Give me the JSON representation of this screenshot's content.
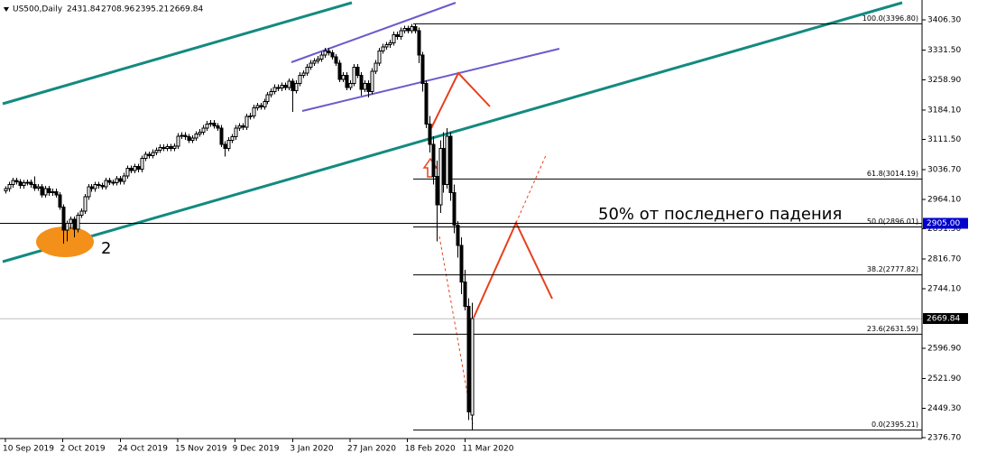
{
  "chart_data": {
    "type": "candlestick",
    "symbol": "US500,Daily",
    "up_color": "#ffffff",
    "down_color": "#000000",
    "candles": [
      [
        2985,
        2996,
        2978,
        2990
      ],
      [
        2990,
        3007,
        2983,
        3000
      ],
      [
        3000,
        3017,
        2993,
        3010
      ],
      [
        3010,
        3017,
        3000,
        3007
      ],
      [
        3007,
        3014,
        2991,
        2998
      ],
      [
        2998,
        3012,
        2991,
        3005
      ],
      [
        3005,
        3013,
        2998,
        3006
      ],
      [
        3006,
        3013,
        2993,
        3000
      ],
      [
        3000,
        3020,
        2985,
        2992
      ],
      [
        2992,
        3002,
        2985,
        2995
      ],
      [
        2995,
        3002,
        2968,
        2975
      ],
      [
        2975,
        2997,
        2968,
        2990
      ],
      [
        2990,
        2997,
        2973,
        2980
      ],
      [
        2980,
        2990,
        2973,
        2983
      ],
      [
        2983,
        2990,
        2968,
        2975
      ],
      [
        2975,
        2982,
        2938,
        2945
      ],
      [
        2945,
        2952,
        2855,
        2888
      ],
      [
        2888,
        2912,
        2860,
        2905
      ],
      [
        2905,
        2922,
        2890,
        2915
      ],
      [
        2915,
        2922,
        2870,
        2890
      ],
      [
        2890,
        2932,
        2883,
        2925
      ],
      [
        2925,
        2942,
        2918,
        2935
      ],
      [
        2935,
        2977,
        2928,
        2970
      ],
      [
        2970,
        3002,
        2963,
        2995
      ],
      [
        2995,
        3002,
        2983,
        2990
      ],
      [
        2990,
        3007,
        2983,
        3000
      ],
      [
        3000,
        3007,
        2991,
        2998
      ],
      [
        2998,
        3005,
        2988,
        2995
      ],
      [
        2995,
        3017,
        2988,
        3010
      ],
      [
        3010,
        3017,
        2999,
        3006
      ],
      [
        3006,
        3013,
        2998,
        3005
      ],
      [
        3005,
        3022,
        2998,
        3015
      ],
      [
        3015,
        3022,
        3001,
        3008
      ],
      [
        3008,
        3029,
        3001,
        3022
      ],
      [
        3022,
        3047,
        3015,
        3040
      ],
      [
        3040,
        3047,
        3028,
        3035
      ],
      [
        3035,
        3052,
        3028,
        3045
      ],
      [
        3045,
        3052,
        3031,
        3038
      ],
      [
        3038,
        3072,
        3031,
        3065
      ],
      [
        3065,
        3082,
        3058,
        3075
      ],
      [
        3075,
        3082,
        3065,
        3072
      ],
      [
        3072,
        3087,
        3065,
        3080
      ],
      [
        3080,
        3092,
        3073,
        3085
      ],
      [
        3085,
        3099,
        3078,
        3092
      ],
      [
        3092,
        3099,
        3083,
        3090
      ],
      [
        3090,
        3101,
        3083,
        3094
      ],
      [
        3094,
        3101,
        3083,
        3090
      ],
      [
        3090,
        3102,
        3083,
        3095
      ],
      [
        3095,
        3127,
        3088,
        3120
      ],
      [
        3120,
        3129,
        3113,
        3122
      ],
      [
        3122,
        3129,
        3111,
        3118
      ],
      [
        3118,
        3125,
        3103,
        3110
      ],
      [
        3110,
        3122,
        3103,
        3115
      ],
      [
        3115,
        3132,
        3108,
        3125
      ],
      [
        3125,
        3137,
        3118,
        3130
      ],
      [
        3130,
        3147,
        3123,
        3140
      ],
      [
        3140,
        3157,
        3133,
        3150
      ],
      [
        3150,
        3159,
        3143,
        3152
      ],
      [
        3152,
        3159,
        3138,
        3145
      ],
      [
        3145,
        3152,
        3133,
        3140
      ],
      [
        3140,
        3147,
        3093,
        3100
      ],
      [
        3100,
        3107,
        3070,
        3090
      ],
      [
        3090,
        3117,
        3083,
        3110
      ],
      [
        3110,
        3125,
        3103,
        3118
      ],
      [
        3118,
        3147,
        3111,
        3140
      ],
      [
        3140,
        3152,
        3133,
        3145
      ],
      [
        3145,
        3152,
        3135,
        3142
      ],
      [
        3142,
        3175,
        3135,
        3168
      ],
      [
        3168,
        3177,
        3161,
        3170
      ],
      [
        3170,
        3197,
        3163,
        3190
      ],
      [
        3190,
        3202,
        3183,
        3195
      ],
      [
        3195,
        3202,
        3185,
        3192
      ],
      [
        3192,
        3212,
        3185,
        3205
      ],
      [
        3205,
        3229,
        3198,
        3222
      ],
      [
        3222,
        3237,
        3215,
        3230
      ],
      [
        3230,
        3247,
        3223,
        3240
      ],
      [
        3240,
        3247,
        3231,
        3238
      ],
      [
        3238,
        3252,
        3231,
        3245
      ],
      [
        3245,
        3252,
        3233,
        3240
      ],
      [
        3240,
        3262,
        3233,
        3255
      ],
      [
        3255,
        3262,
        3180,
        3232
      ],
      [
        3232,
        3257,
        3225,
        3250
      ],
      [
        3250,
        3277,
        3243,
        3270
      ],
      [
        3270,
        3282,
        3263,
        3275
      ],
      [
        3275,
        3297,
        3268,
        3290
      ],
      [
        3290,
        3307,
        3283,
        3300
      ],
      [
        3300,
        3312,
        3293,
        3305
      ],
      [
        3305,
        3317,
        3298,
        3310
      ],
      [
        3310,
        3327,
        3303,
        3320
      ],
      [
        3320,
        3337,
        3313,
        3330
      ],
      [
        3330,
        3337,
        3318,
        3325
      ],
      [
        3325,
        3332,
        3308,
        3315
      ],
      [
        3315,
        3322,
        3293,
        3300
      ],
      [
        3300,
        3307,
        3253,
        3260
      ],
      [
        3260,
        3277,
        3253,
        3270
      ],
      [
        3270,
        3277,
        3233,
        3240
      ],
      [
        3240,
        3257,
        3233,
        3250
      ],
      [
        3250,
        3297,
        3243,
        3290
      ],
      [
        3290,
        3297,
        3263,
        3270
      ],
      [
        3270,
        3277,
        3220,
        3235
      ],
      [
        3235,
        3257,
        3228,
        3250
      ],
      [
        3250,
        3257,
        3215,
        3230
      ],
      [
        3230,
        3287,
        3223,
        3280
      ],
      [
        3280,
        3307,
        3273,
        3300
      ],
      [
        3300,
        3337,
        3293,
        3330
      ],
      [
        3330,
        3347,
        3323,
        3340
      ],
      [
        3340,
        3352,
        3333,
        3345
      ],
      [
        3345,
        3357,
        3338,
        3350
      ],
      [
        3350,
        3377,
        3343,
        3370
      ],
      [
        3370,
        3377,
        3358,
        3365
      ],
      [
        3365,
        3387,
        3358,
        3380
      ],
      [
        3380,
        3392,
        3373,
        3385
      ],
      [
        3385,
        3392,
        3373,
        3380
      ],
      [
        3380,
        3396.8,
        3373,
        3390
      ],
      [
        3390,
        3395,
        3373,
        3380
      ],
      [
        3380,
        3387,
        3300,
        3320
      ],
      [
        3320,
        3327,
        3230,
        3250
      ],
      [
        3250,
        3257,
        3140,
        3150
      ],
      [
        3150,
        3170,
        3080,
        3100
      ],
      [
        3100,
        3120,
        3000,
        3020
      ],
      [
        3020,
        3060,
        2860,
        2950
      ],
      [
        2950,
        3110,
        2930,
        3090
      ],
      [
        3090,
        3130,
        2980,
        3000
      ],
      [
        3000,
        3140,
        2990,
        3120
      ],
      [
        3120,
        3130,
        2960,
        2980
      ],
      [
        2980,
        3000,
        2880,
        2900
      ],
      [
        2900,
        2910,
        2820,
        2850
      ],
      [
        2850,
        2870,
        2730,
        2760
      ],
      [
        2760,
        2790,
        2690,
        2700
      ],
      [
        2700,
        2720,
        2420,
        2440
      ],
      [
        2431.84,
        2708.96,
        2395.21,
        2669.84
      ]
    ],
    "xlim": [
      -1.5,
      255.3
    ],
    "xticks": [
      {
        "value": 0,
        "label": "10 Sep 2019"
      },
      {
        "value": 16,
        "label": "2 Oct 2019"
      },
      {
        "value": 32,
        "label": "24 Oct 2019"
      },
      {
        "value": 48,
        "label": "15 Nov 2019"
      },
      {
        "value": 64,
        "label": "9 Dec 2019"
      },
      {
        "value": 80,
        "label": "3 Jan 2020"
      },
      {
        "value": 96,
        "label": "27 Jan 2020"
      },
      {
        "value": 112,
        "label": "18 Feb 2020"
      },
      {
        "value": 128,
        "label": "11 Mar 2020"
      }
    ],
    "ylim": [
      2374.47,
      3455.33
    ],
    "yticks": [
      {
        "value": 3406.3,
        "label": "3406.30"
      },
      {
        "value": 3331.5,
        "label": "3331.50"
      },
      {
        "value": 3258.9,
        "label": "3258.90"
      },
      {
        "value": 3184.1,
        "label": "3184.10"
      },
      {
        "value": 3111.5,
        "label": "3111.50"
      },
      {
        "value": 3036.7,
        "label": "3036.70"
      },
      {
        "value": 2964.1,
        "label": "2964.10"
      },
      {
        "value": 2891.5,
        "label": "2891.50"
      },
      {
        "value": 2816.7,
        "label": "2816.70"
      },
      {
        "value": 2744.1,
        "label": "2744.10"
      },
      {
        "value": 2596.9,
        "label": "2596.90"
      },
      {
        "value": 2521.9,
        "label": "2521.90"
      },
      {
        "value": 2449.3,
        "label": "2449.30"
      },
      {
        "value": 2376.7,
        "label": "2376.70"
      }
    ],
    "fibo_levels": [
      {
        "value": 3396.8,
        "label": "100.0(3396.80)"
      },
      {
        "value": 3014.19,
        "label": "61.8(3014.19)"
      },
      {
        "value": 2896.01,
        "label": "50.0(2896.01)"
      },
      {
        "value": 2777.82,
        "label": "38.2(2777.82)"
      },
      {
        "value": 2631.59,
        "label": "23.6(2631.59)"
      },
      {
        "value": 2395.21,
        "label": "0.0(2395.21)"
      }
    ],
    "level_line": {
      "value": 2905,
      "label": "2905.00",
      "color": "#0000cc"
    },
    "annotations": [
      "50% от последнего падения",
      "2"
    ]
  }
}
